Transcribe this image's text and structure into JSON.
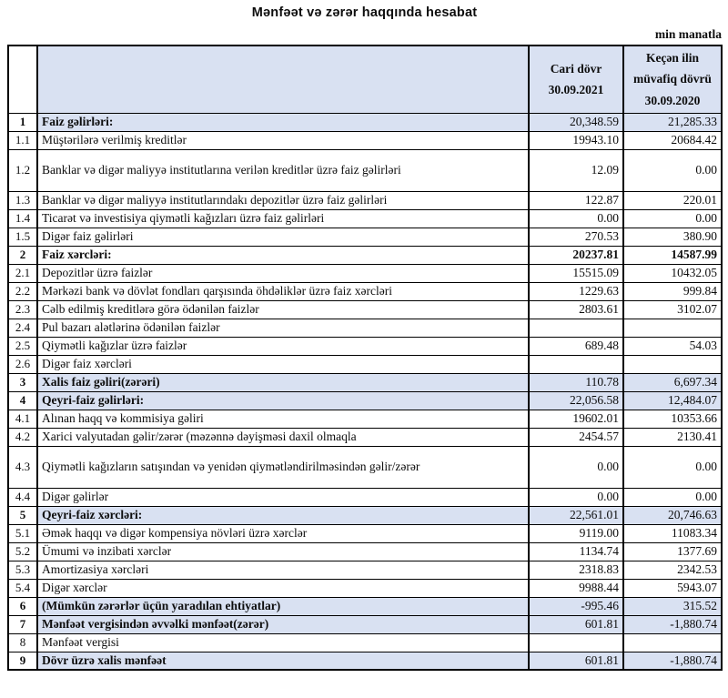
{
  "title": "Mənfəət və zərər haqqında hesabat",
  "unit_note": "min manatla",
  "colors": {
    "highlight": "#d9e1f2",
    "border": "#000000",
    "background": "#ffffff"
  },
  "table": {
    "columns": {
      "current_header": "Cari dövr\n30.09.2021",
      "previous_header": "Keçən ilin\nmüvafiq dövrü\n30.09.2020"
    },
    "rows": [
      {
        "no": "1",
        "label": "Faiz gəlirləri:",
        "current": "20,348.59",
        "previous": "21,285.33",
        "highlight": true,
        "bold": true,
        "values_bold": false,
        "tall": false
      },
      {
        "no": "1.1",
        "label": "Müştərilərə verilmiş kreditlər",
        "current": "19943.10",
        "previous": "20684.42",
        "highlight": false,
        "bold": false,
        "values_bold": false,
        "tall": false
      },
      {
        "no": "1.2",
        "label": "Banklar və digər maliyyə institutlarına verilən kreditlər üzrə faiz gəlirləri",
        "current": "12.09",
        "previous": "0.00",
        "highlight": false,
        "bold": false,
        "values_bold": false,
        "tall": true
      },
      {
        "no": "1.3",
        "label": "Banklar və digər maliyyə institutlarındakı depozitlər üzrə faiz gəlirləri",
        "current": "122.87",
        "previous": "220.01",
        "highlight": false,
        "bold": false,
        "values_bold": false,
        "tall": false
      },
      {
        "no": "1.4",
        "label": "Ticarət və investisiya qiymətli kağızları üzrə faiz gəlirləri",
        "current": "0.00",
        "previous": "0.00",
        "highlight": false,
        "bold": false,
        "values_bold": false,
        "tall": false
      },
      {
        "no": "1.5",
        "label": "Digər faiz gəlirləri",
        "current": "270.53",
        "previous": "380.90",
        "highlight": false,
        "bold": false,
        "values_bold": false,
        "tall": false
      },
      {
        "no": "2",
        "label": "Faiz xərcləri:",
        "current": "20237.81",
        "previous": "14587.99",
        "highlight": false,
        "bold": true,
        "values_bold": true,
        "tall": false
      },
      {
        "no": "2.1",
        "label": "Depozitlər üzrə faizlər",
        "current": "15515.09",
        "previous": "10432.05",
        "highlight": false,
        "bold": false,
        "values_bold": false,
        "tall": false
      },
      {
        "no": "2.2",
        "label": "Mərkəzi bank və dövlət fondları qarşısında öhdəliklər üzrə faiz xərcləri",
        "current": "1229.63",
        "previous": "999.84",
        "highlight": false,
        "bold": false,
        "values_bold": false,
        "tall": false
      },
      {
        "no": "2.3",
        "label": "Cəlb edilmiş kreditlərə görə ödənilən faizlər",
        "current": "2803.61",
        "previous": "3102.07",
        "highlight": false,
        "bold": false,
        "values_bold": false,
        "tall": false
      },
      {
        "no": "2.4",
        "label": "Pul bazarı alətlərinə ödənilən faizlər",
        "current": "",
        "previous": "",
        "highlight": false,
        "bold": false,
        "values_bold": false,
        "tall": false
      },
      {
        "no": "2.5",
        "label": "Qiymətli kağızlar üzrə faizlər",
        "current": "689.48",
        "previous": "54.03",
        "highlight": false,
        "bold": false,
        "values_bold": false,
        "tall": false
      },
      {
        "no": "2.6",
        "label": "Digər faiz xərcləri",
        "current": "",
        "previous": "",
        "highlight": false,
        "bold": false,
        "values_bold": false,
        "tall": false
      },
      {
        "no": "3",
        "label": "Xalis faiz gəliri(zərəri)",
        "current": "110.78",
        "previous": "6,697.34",
        "highlight": true,
        "bold": true,
        "values_bold": false,
        "tall": false
      },
      {
        "no": "4",
        "label": "Qeyri-faiz gəlirləri:",
        "current": "22,056.58",
        "previous": "12,484.07",
        "highlight": true,
        "bold": true,
        "values_bold": false,
        "tall": false
      },
      {
        "no": "4.1",
        "label": "Alınan haqq və kommisiya gəliri",
        "current": "19602.01",
        "previous": "10353.66",
        "highlight": false,
        "bold": false,
        "values_bold": false,
        "tall": false
      },
      {
        "no": "4.2",
        "label": "Xarici valyutadan gəlir/zərər (məzənnə dəyişməsi daxil olmaqla",
        "current": "2454.57",
        "previous": "2130.41",
        "highlight": false,
        "bold": false,
        "values_bold": false,
        "tall": false
      },
      {
        "no": "4.3",
        "label": "Qiymətli kağızların satışından və yenidən qiymətləndirilməsindən gəlir/zərər",
        "current": "0.00",
        "previous": "0.00",
        "highlight": false,
        "bold": false,
        "values_bold": false,
        "tall": true
      },
      {
        "no": "4.4",
        "label": "Digər gəlirlər",
        "current": "0.00",
        "previous": "0.00",
        "highlight": false,
        "bold": false,
        "values_bold": false,
        "tall": false
      },
      {
        "no": "5",
        "label": "Qeyri-faiz xərcləri:",
        "current": "22,561.01",
        "previous": "20,746.63",
        "highlight": true,
        "bold": true,
        "values_bold": false,
        "tall": false
      },
      {
        "no": "5.1",
        "label": "Əmək haqqı və digər kompensiya növləri üzrə xərclər",
        "current": "9119.00",
        "previous": "11083.34",
        "highlight": false,
        "bold": false,
        "values_bold": false,
        "tall": false
      },
      {
        "no": "5.2",
        "label": "Ümumi və inzibati xərclər",
        "current": "1134.74",
        "previous": "1377.69",
        "highlight": false,
        "bold": false,
        "values_bold": false,
        "tall": false
      },
      {
        "no": "5.3",
        "label": "Amortizasiya xərcləri",
        "current": "2318.83",
        "previous": "2342.53",
        "highlight": false,
        "bold": false,
        "values_bold": false,
        "tall": false
      },
      {
        "no": "5.4",
        "label": "Digər xərclər",
        "current": "9988.44",
        "previous": "5943.07",
        "highlight": false,
        "bold": false,
        "values_bold": false,
        "tall": false
      },
      {
        "no": "6",
        "label": "(Mümkün zərərlər üçün yaradılan ehtiyatlar)",
        "current": "-995.46",
        "previous": "315.52",
        "highlight": true,
        "bold": true,
        "values_bold": false,
        "tall": false
      },
      {
        "no": "7",
        "label": "Mənfəət vergisindən əvvəlki mənfəət(zərər)",
        "current": "601.81",
        "previous": "-1,880.74",
        "highlight": true,
        "bold": true,
        "values_bold": false,
        "tall": false
      },
      {
        "no": "8",
        "label": "Mənfəət vergisi",
        "current": "",
        "previous": "",
        "highlight": false,
        "bold": false,
        "values_bold": false,
        "tall": false
      },
      {
        "no": "9",
        "label": "Dövr üzrə xalis mənfəət",
        "current": "601.81",
        "previous": "-1,880.74",
        "highlight": true,
        "bold": true,
        "values_bold": false,
        "tall": false
      }
    ]
  }
}
